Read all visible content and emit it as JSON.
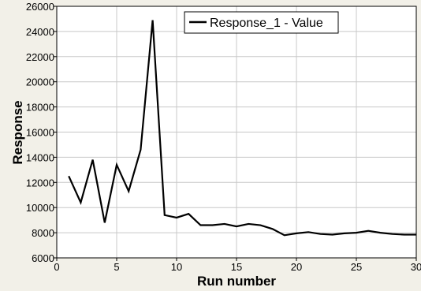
{
  "chart_data": {
    "type": "line",
    "title": "",
    "xlabel": "Run number",
    "ylabel": "Response",
    "xlim": [
      0,
      30
    ],
    "ylim": [
      6000,
      26000
    ],
    "xticks": [
      0,
      5,
      10,
      15,
      20,
      25,
      30
    ],
    "yticks": [
      6000,
      8000,
      10000,
      12000,
      14000,
      16000,
      18000,
      20000,
      22000,
      24000,
      26000
    ],
    "grid": true,
    "legend_position": "top-right",
    "series": [
      {
        "name": "Response_1 - Value",
        "color": "#000000",
        "x": [
          1,
          2,
          3,
          4,
          5,
          6,
          7,
          8,
          9,
          10,
          11,
          12,
          13,
          14,
          15,
          16,
          17,
          18,
          19,
          20,
          21,
          22,
          23,
          24,
          25,
          26,
          27,
          28,
          29,
          30
        ],
        "y": [
          12500,
          10400,
          13800,
          8800,
          13400,
          11300,
          14600,
          24900,
          9400,
          9200,
          9500,
          8600,
          8600,
          8700,
          8500,
          8700,
          8600,
          8300,
          7800,
          7950,
          8050,
          7900,
          7850,
          7950,
          8000,
          8150,
          8000,
          7900,
          7850,
          7850
        ]
      }
    ]
  }
}
